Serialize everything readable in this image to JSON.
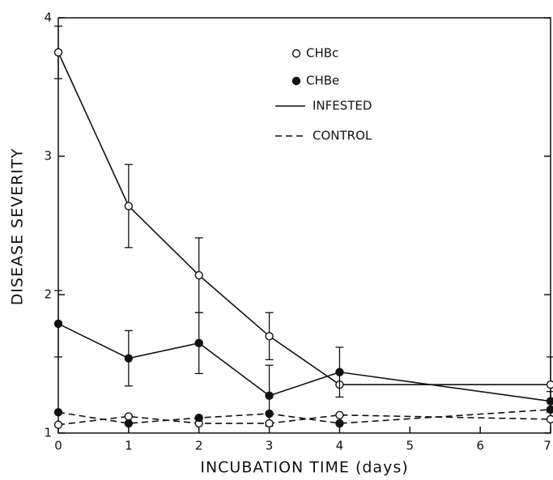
{
  "chart_data": {
    "type": "line",
    "xlabel": "INCUBATION TIME (days)",
    "ylabel": "DISEASE SEVERITY",
    "xlim": [
      0,
      7
    ],
    "xticks": [
      0,
      1,
      2,
      3,
      4,
      5,
      6,
      7
    ],
    "ylim": [
      1,
      4
    ],
    "yticks": [
      1,
      2,
      3,
      4
    ],
    "x": [
      0,
      1,
      2,
      3,
      4,
      7
    ],
    "legend": {
      "markers": [
        {
          "label": "CHBc",
          "fill": "open"
        },
        {
          "label": "CHBe",
          "fill": "filled"
        }
      ],
      "lines": [
        {
          "label": "INFESTED",
          "dash": false
        },
        {
          "label": "CONTROL",
          "dash": true
        }
      ]
    },
    "series": [
      {
        "marker": 0,
        "line": 0,
        "color": "#111",
        "values": [
          3.75,
          2.64,
          2.14,
          1.7,
          1.35,
          1.35
        ],
        "errors": [
          0.19,
          0.3,
          0.27,
          0.17,
          0.0,
          0.2
        ]
      },
      {
        "marker": 1,
        "line": 0,
        "color": "#111",
        "values": [
          1.79,
          1.54,
          1.65,
          1.27,
          1.44,
          1.23
        ],
        "errors": [
          0.24,
          0.2,
          0.22,
          0.22,
          0.18,
          0.07
        ]
      },
      {
        "marker": 0,
        "line": 1,
        "color": "#111",
        "values": [
          1.06,
          1.12,
          1.07,
          1.07,
          1.13,
          1.1
        ]
      },
      {
        "marker": 1,
        "line": 1,
        "color": "#111",
        "values": [
          1.15,
          1.07,
          1.11,
          1.14,
          1.07,
          1.17
        ]
      }
    ]
  }
}
